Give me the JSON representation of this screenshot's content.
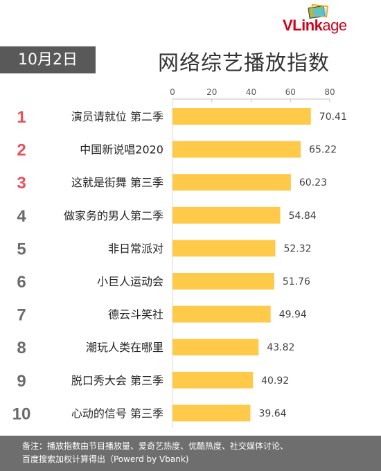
{
  "logo": {
    "part1": "VLink",
    "part2": "age"
  },
  "date_badge": "10月2日",
  "title": "网络综艺播放指数",
  "colors": {
    "bar": "#FFC94A",
    "rank_top": "#E8505B",
    "rank_other": "#6B6B6B",
    "badge_bg": "#595959",
    "footer_bg": "#6E6E6E"
  },
  "chart_data": {
    "type": "bar",
    "orientation": "horizontal",
    "xlim": [
      0,
      80
    ],
    "x_ticks": [
      0,
      20,
      40,
      60,
      80
    ],
    "grid": false,
    "categories": [
      "演员请就位 第二季",
      "中国新说唱2020",
      "这就是街舞 第三季",
      "做家务的男人第二季",
      "非日常派对",
      "小巨人运动会",
      "德云斗笑社",
      "潮玩人类在哪里",
      "脱口秀大会 第三季",
      "心动的信号 第三季"
    ],
    "ranks": [
      "1",
      "2",
      "3",
      "4",
      "5",
      "6",
      "7",
      "8",
      "9",
      "10"
    ],
    "values": [
      70.41,
      65.22,
      60.23,
      54.84,
      52.32,
      51.76,
      49.94,
      43.82,
      40.92,
      39.64
    ],
    "value_labels": [
      "70.41",
      "65.22",
      "60.23",
      "54.84",
      "52.32",
      "51.76",
      "49.94",
      "43.82",
      "40.92",
      "39.64"
    ]
  },
  "footer": {
    "line1": "备注：播放指数由节目播放量、爱奇艺热度、优酷热度、社交媒体讨论、",
    "line2": "百度搜索加权计算得出（Powerd by Vbank)"
  }
}
